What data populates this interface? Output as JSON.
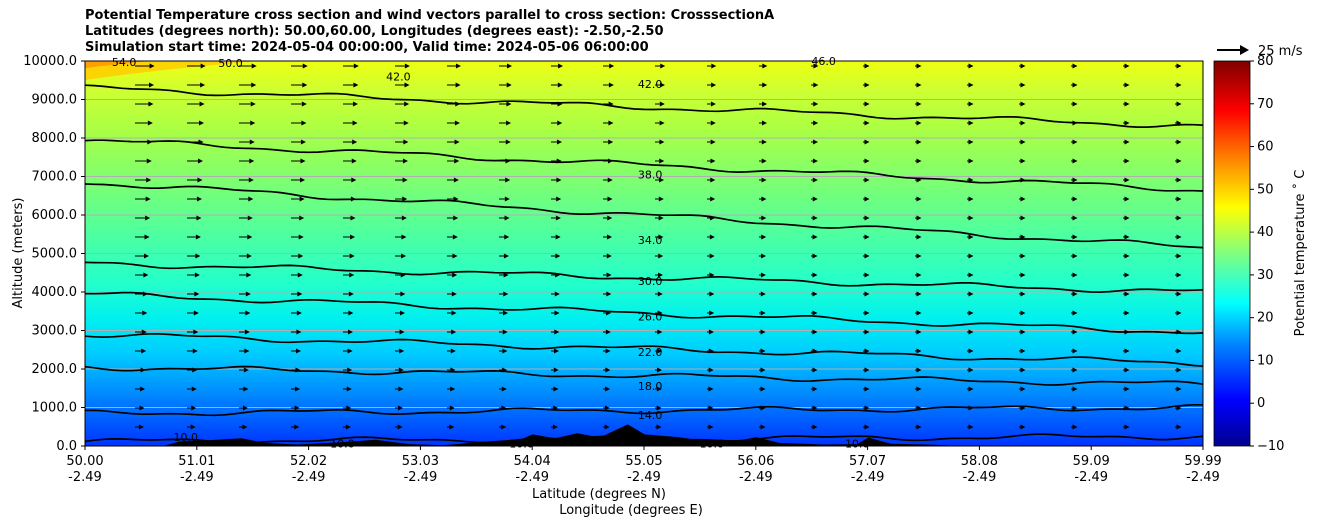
{
  "chart_data": {
    "type": "contour",
    "title_lines": [
      "Potential Temperature cross section and wind vectors parallel to cross section: CrosssectionA",
      "Latitudes (degrees north): 50.00,60.00, Longitudes (degrees east): -2.50,-2.50",
      "Simulation start time: 2024-05-04 00:00:00, Valid time: 2024-05-06 06:00:00"
    ],
    "ylabel": "Altitude (meters)",
    "xlabel": "Latitude (degrees N)",
    "xlabel2": "Longitude (degrees E)",
    "ylim": [
      0,
      10000
    ],
    "y_ticks": [
      "0.0",
      "1000.0",
      "2000.0",
      "3000.0",
      "4000.0",
      "5000.0",
      "6000.0",
      "7000.0",
      "8000.0",
      "9000.0",
      "10000.0"
    ],
    "x_ticks_lat": [
      "50.00",
      "51.01",
      "52.02",
      "53.03",
      "54.04",
      "55.05",
      "56.06",
      "57.07",
      "58.08",
      "59.09",
      "59.99"
    ],
    "x_ticks_lon": [
      "-2.49",
      "-2.49",
      "-2.49",
      "-2.49",
      "-2.49",
      "-2.49",
      "-2.49",
      "-2.49",
      "-2.49",
      "-2.49",
      "-2.49"
    ],
    "grid": "horizontal",
    "colorbar": {
      "label": "Potential temperature ˚ C",
      "range": [
        -10,
        80
      ],
      "ticks": [
        "−10",
        "0",
        "10",
        "20",
        "30",
        "40",
        "50",
        "60",
        "70",
        "80"
      ],
      "colormap": "jet"
    },
    "quiver_key": {
      "label": "25 m/s"
    },
    "contour_lines": [
      {
        "level": 10,
        "alt_left": 120,
        "alt_right": 250
      },
      {
        "level": 14,
        "alt_left": 850,
        "alt_right": 1000
      },
      {
        "level": 18,
        "alt_left": 2050,
        "alt_right": 1600
      },
      {
        "level": 22,
        "alt_left": 2900,
        "alt_right": 2150
      },
      {
        "level": 26,
        "alt_left": 3950,
        "alt_right": 2950
      },
      {
        "level": 30,
        "alt_left": 4750,
        "alt_right": 4000
      },
      {
        "level": 34,
        "alt_left": 6850,
        "alt_right": 5150
      },
      {
        "level": 38,
        "alt_left": 7950,
        "alt_right": 6650
      },
      {
        "level": 42,
        "alt_left": 9300,
        "alt_right": 8300
      }
    ],
    "contour_labels": [
      {
        "text": "10.0",
        "x": 50.9,
        "alt": 230
      },
      {
        "text": "10.0",
        "x": 52.3,
        "alt": 60
      },
      {
        "text": "10.0",
        "x": 53.9,
        "alt": 60
      },
      {
        "text": "10.0",
        "x": 55.6,
        "alt": 60
      },
      {
        "text": "10.0",
        "x": 56.9,
        "alt": 60
      },
      {
        "text": "14.0",
        "x": 55.05,
        "alt": 800
      },
      {
        "text": "18.0",
        "x": 55.05,
        "alt": 1560
      },
      {
        "text": "22.0",
        "x": 55.05,
        "alt": 2440
      },
      {
        "text": "26.0",
        "x": 55.05,
        "alt": 3370
      },
      {
        "text": "30.0",
        "x": 55.05,
        "alt": 4280
      },
      {
        "text": "34.0",
        "x": 55.05,
        "alt": 5350
      },
      {
        "text": "38.0",
        "x": 55.05,
        "alt": 7050
      },
      {
        "text": "42.0",
        "x": 55.05,
        "alt": 9400
      },
      {
        "text": "42.0",
        "x": 52.8,
        "alt": 9600
      },
      {
        "text": "46.0",
        "x": 56.6,
        "alt": 10000
      },
      {
        "text": "50.0",
        "x": 51.3,
        "alt": 9950
      },
      {
        "text": "54.0",
        "x": 50.35,
        "alt": 9980
      }
    ],
    "terrain": [
      [
        50.0,
        0
      ],
      [
        50.7,
        0
      ],
      [
        50.85,
        120
      ],
      [
        51.1,
        150
      ],
      [
        51.4,
        200
      ],
      [
        51.6,
        80
      ],
      [
        51.9,
        40
      ],
      [
        52.3,
        100
      ],
      [
        52.6,
        160
      ],
      [
        52.9,
        50
      ],
      [
        53.2,
        20
      ],
      [
        53.6,
        120
      ],
      [
        53.9,
        180
      ],
      [
        54.0,
        300
      ],
      [
        54.2,
        200
      ],
      [
        54.4,
        330
      ],
      [
        54.6,
        220
      ],
      [
        54.85,
        560
      ],
      [
        55.0,
        300
      ],
      [
        55.3,
        230
      ],
      [
        55.5,
        150
      ],
      [
        55.8,
        120
      ],
      [
        56.0,
        230
      ],
      [
        56.2,
        80
      ],
      [
        56.6,
        40
      ],
      [
        56.9,
        50
      ],
      [
        57.0,
        220
      ],
      [
        57.2,
        60
      ],
      [
        57.6,
        30
      ],
      [
        57.8,
        0
      ],
      [
        59.99,
        0
      ]
    ]
  }
}
